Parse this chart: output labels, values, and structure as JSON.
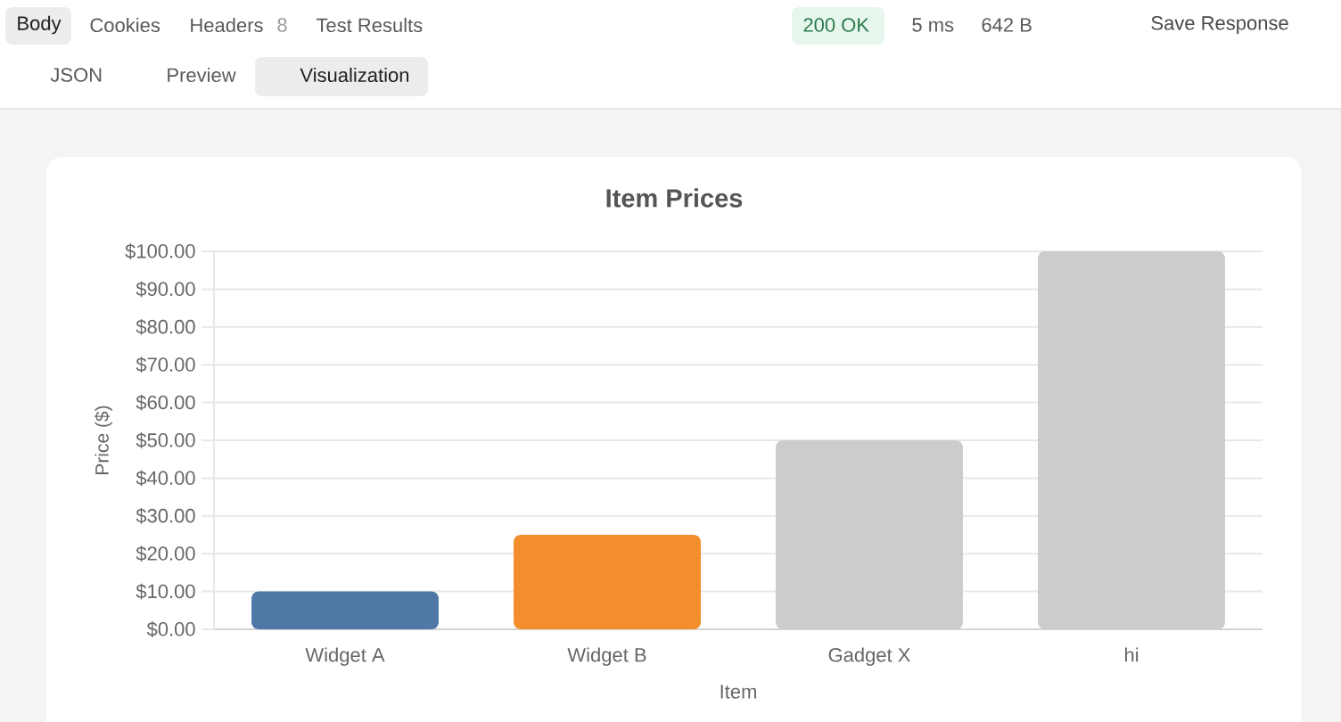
{
  "chart_data": {
    "type": "bar",
    "title": "Item Prices",
    "xlabel": "Item",
    "ylabel": "Price ($)",
    "categories": [
      "Widget A",
      "Widget B",
      "Gadget X",
      "hi"
    ],
    "values": [
      10,
      25,
      50,
      100
    ],
    "colors": [
      "#4e79a7",
      "#f28e2b",
      "#cccccc",
      "#cccccc"
    ],
    "ylim": [
      0,
      100
    ],
    "yticks": [
      {
        "value": 0,
        "label": "$0.00"
      },
      {
        "value": 10,
        "label": "$10.00"
      },
      {
        "value": 20,
        "label": "$20.00"
      },
      {
        "value": 30,
        "label": "$30.00"
      },
      {
        "value": 40,
        "label": "$40.00"
      },
      {
        "value": 50,
        "label": "$50.00"
      },
      {
        "value": 60,
        "label": "$60.00"
      },
      {
        "value": 70,
        "label": "$70.00"
      },
      {
        "value": 80,
        "label": "$80.00"
      },
      {
        "value": 90,
        "label": "$90.00"
      },
      {
        "value": 100,
        "label": "$100.00"
      }
    ],
    "grid": "y",
    "annotations": [
      "Body",
      "Cookies",
      "Headers",
      "8",
      "Test Results",
      "200 OK",
      "5 ms",
      "642 B",
      "Save Response",
      "JSON",
      "Preview",
      "Visualization"
    ]
  }
}
